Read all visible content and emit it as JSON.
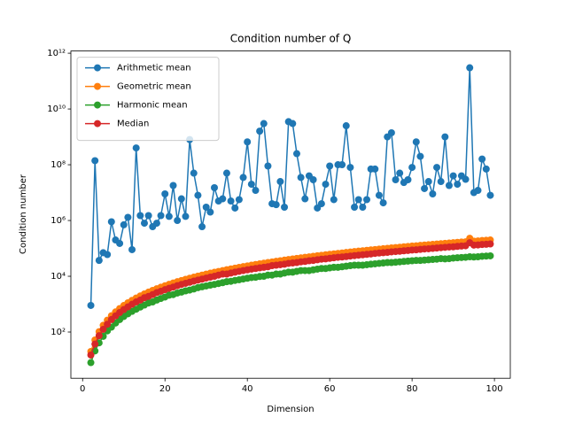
{
  "chart_data": {
    "type": "line",
    "title": "Condition number of Q",
    "xlabel": "Dimension",
    "ylabel": "Condition number",
    "yscale": "log",
    "legend": "upper left",
    "grid": false,
    "xlim": [
      -2.85,
      103.85
    ],
    "ylim": [
      2.2,
      1200000000000.0
    ],
    "xticks": [
      0,
      20,
      40,
      60,
      80,
      100
    ],
    "yticks": [
      {
        "value": 100,
        "label": "10²"
      },
      {
        "value": 10000,
        "label": "10⁴"
      },
      {
        "value": 1000000,
        "label": "10⁶"
      },
      {
        "value": 100000000,
        "label": "10⁸"
      },
      {
        "value": 10000000000,
        "label": "10¹⁰"
      },
      {
        "value": 1000000000000,
        "label": "10¹²"
      }
    ],
    "x": [
      2,
      3,
      4,
      5,
      6,
      7,
      8,
      9,
      10,
      11,
      12,
      13,
      14,
      15,
      16,
      17,
      18,
      19,
      20,
      21,
      22,
      23,
      24,
      25,
      26,
      27,
      28,
      29,
      30,
      31,
      32,
      33,
      34,
      35,
      36,
      37,
      38,
      39,
      40,
      41,
      42,
      43,
      44,
      45,
      46,
      47,
      48,
      49,
      50,
      51,
      52,
      53,
      54,
      55,
      56,
      57,
      58,
      59,
      60,
      61,
      62,
      63,
      64,
      65,
      66,
      67,
      68,
      69,
      70,
      71,
      72,
      73,
      74,
      75,
      76,
      77,
      78,
      79,
      80,
      81,
      82,
      83,
      84,
      85,
      86,
      87,
      88,
      89,
      90,
      91,
      92,
      93,
      94,
      95,
      96,
      97,
      98,
      99
    ],
    "series": [
      {
        "name": "Arithmetic mean",
        "color": "#1f77b4",
        "values": [
          900,
          140000000.0,
          37000.0,
          70000.0,
          60000.0,
          900000.0,
          200000.0,
          150000.0,
          700000.0,
          1300000.0,
          90000.0,
          400000000.0,
          1500000.0,
          800000.0,
          1500000.0,
          600000.0,
          800000.0,
          1500000.0,
          9000000.0,
          1400000.0,
          18000000.0,
          1000000.0,
          6000000.0,
          1400000.0,
          800000000.0,
          50000000.0,
          8000000.0,
          600000.0,
          3000000.0,
          2000000.0,
          15000000.0,
          5000000.0,
          6000000.0,
          50000000.0,
          5000000.0,
          2800000.0,
          5600000.0,
          35000000.0,
          660000000.0,
          20000000.0,
          12000000.0,
          1600000000.0,
          3000000000.0,
          90000000.0,
          4000000.0,
          3700000.0,
          25000000.0,
          3000000.0,
          3500000000.0,
          3000000000.0,
          250000000.0,
          35000000.0,
          6000000.0,
          40000000.0,
          29000000.0,
          2800000.0,
          4000000.0,
          20000000.0,
          90000000.0,
          5600000.0,
          100000000.0,
          100000000.0,
          2500000000.0,
          80000000.0,
          3000000.0,
          5600000.0,
          3000000.0,
          5600000.0,
          70000000.0,
          70000000.0,
          8000000.0,
          4300000.0,
          1000000000.0,
          1400000000.0,
          29000000.0,
          50000000.0,
          23000000.0,
          29000000.0,
          80000000.0,
          660000000.0,
          200000000.0,
          14000000.0,
          25000000.0,
          9000000.0,
          80000000.0,
          25000000.0,
          1000000000.0,
          18000000.0,
          40000000.0,
          20000000.0,
          40000000.0,
          30000000.0,
          300000000000.0,
          10000000.0,
          12000000.0,
          160000000.0,
          70000000.0,
          8000000.0
        ]
      },
      {
        "name": "Geometric mean",
        "color": "#ff7f0e",
        "values": [
          20,
          52,
          103,
          174,
          267,
          385,
          527,
          695,
          893,
          1117,
          1371,
          1656,
          1972,
          2323,
          2704,
          3119,
          3573,
          4064,
          4581,
          5140,
          5728,
          6383,
          7031,
          7762,
          8511,
          9290,
          10140,
          10990,
          11910,
          12900,
          13900,
          14900,
          16000,
          17200,
          18300,
          19600,
          20800,
          22100,
          23500,
          24900,
          26400,
          27900,
          29400,
          31000,
          32700,
          34400,
          36100,
          37900,
          39800,
          41800,
          43700,
          45600,
          47600,
          49800,
          52000,
          54300,
          56400,
          58900,
          61200,
          63600,
          66100,
          68500,
          71300,
          74000,
          76900,
          79400,
          82000,
          85300,
          88100,
          91000,
          94000,
          97100,
          100000,
          104000,
          107000,
          110000,
          114000,
          117000,
          121000,
          124000,
          128000,
          132000,
          135000,
          139000,
          143000,
          147000,
          151000,
          155000,
          159000,
          164000,
          168000,
          172000,
          230000,
          182000,
          185000,
          191000,
          195000,
          200000
        ]
      },
      {
        "name": "Harmonic mean",
        "color": "#2ca02c",
        "values": [
          8,
          21,
          41,
          70,
          110,
          150,
          210,
          280,
          360,
          450,
          550,
          660,
          790,
          930,
          1100,
          1200,
          1400,
          1600,
          1800,
          2100,
          2200,
          2500,
          2700,
          3000,
          3200,
          3500,
          3900,
          4200,
          4500,
          4800,
          5100,
          5500,
          5900,
          6400,
          6600,
          7100,
          7500,
          8000,
          8500,
          9000,
          9200,
          9800,
          10000,
          11000,
          11000,
          12000,
          12000,
          13000,
          14000,
          14000,
          15000,
          16000,
          16000,
          16000,
          17000,
          18000,
          19000,
          19000,
          20000,
          21000,
          21000,
          22000,
          23000,
          24000,
          25000,
          25000,
          25000,
          26000,
          27000,
          28000,
          29000,
          30000,
          31000,
          31000,
          32000,
          33000,
          34000,
          35000,
          36000,
          37000,
          37000,
          38000,
          39000,
          40000,
          41000,
          43000,
          42000,
          43000,
          45000,
          46000,
          47000,
          48000,
          50000,
          49000,
          50000,
          52000,
          53000,
          54000
        ]
      },
      {
        "name": "Median",
        "color": "#d62728",
        "values": [
          15,
          37,
          74,
          125,
          190,
          280,
          380,
          500,
          640,
          800,
          990,
          1200,
          1400,
          1700,
          1900,
          2200,
          2600,
          2900,
          3300,
          3700,
          4100,
          4600,
          5100,
          5600,
          6100,
          6700,
          7300,
          7900,
          8600,
          9300,
          10000,
          11000,
          12000,
          12000,
          13000,
          14000,
          15000,
          16000,
          17000,
          18000,
          19000,
          20000,
          21000,
          22000,
          24000,
          25000,
          26000,
          27000,
          29000,
          30000,
          31000,
          33000,
          34000,
          36000,
          37000,
          39000,
          41000,
          42000,
          44000,
          46000,
          48000,
          49000,
          51000,
          53000,
          55000,
          57000,
          59000,
          61000,
          63000,
          66000,
          68000,
          70000,
          72000,
          75000,
          77000,
          79000,
          82000,
          84000,
          87000,
          89000,
          92000,
          95000,
          97000,
          100000,
          103000,
          106000,
          109000,
          112000,
          114000,
          118000,
          121000,
          124000,
          160000,
          131000,
          133000,
          138000,
          140000,
          144000
        ]
      }
    ]
  }
}
